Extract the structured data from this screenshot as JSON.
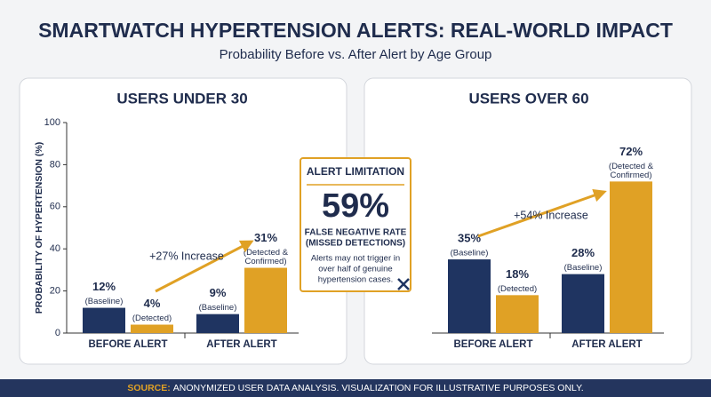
{
  "title": "SMARTWATCH HYPERTENSION ALERTS: REAL-WORLD IMPACT",
  "subtitle": "Probability Before vs. After Alert by Age Group",
  "callout": {
    "heading": "ALERT LIMITATION",
    "figure": "59%",
    "caption": [
      "FALSE NEGATIVE RATE",
      "(MISSED DETECTIONS)"
    ],
    "body": [
      "Alerts may not trigger in",
      "over half of genuine",
      "hypertension cases."
    ]
  },
  "source": {
    "label": "SOURCE:",
    "text": "ANONYMIZED USER DATA ANALYSIS. VISUALIZATION FOR ILLUSTRATIVE PURPOSES ONLY."
  },
  "chart_data": [
    {
      "type": "bar",
      "title": "USERS UNDER 30",
      "ylabel": "PROBABILITY OF HYPERTENSION (%)",
      "categories": [
        "BEFORE ALERT",
        "AFTER ALERT"
      ],
      "series": [
        {
          "color": "#1f3461",
          "values": [
            12,
            9
          ],
          "value_labels": [
            "12%",
            "9%"
          ],
          "sublabels": [
            [
              "(Baseline)"
            ],
            [
              "(Baseline)"
            ]
          ]
        },
        {
          "color": "#e0a125",
          "values": [
            4,
            31
          ],
          "value_labels": [
            "4%",
            "31%"
          ],
          "sublabels": [
            [
              "(Detected)"
            ],
            [
              "(Detected &",
              "Confirmed)"
            ]
          ]
        }
      ],
      "annotation": "+27% Increase",
      "ylim": [
        0,
        100
      ],
      "yticks": [
        0,
        20,
        40,
        60,
        80,
        100
      ]
    },
    {
      "type": "bar",
      "title": "USERS OVER 60",
      "categories": [
        "BEFORE ALERT",
        "AFTER ALERT"
      ],
      "series": [
        {
          "color": "#1f3461",
          "values": [
            35,
            28
          ],
          "value_labels": [
            "35%",
            "28%"
          ],
          "sublabels": [
            [
              "(Baseline)"
            ],
            [
              "(Baseline)"
            ]
          ]
        },
        {
          "color": "#e0a125",
          "values": [
            18,
            72
          ],
          "value_labels": [
            "18%",
            "72%"
          ],
          "sublabels": [
            [
              "(Detected)"
            ],
            [
              "(Detected &",
              "Confirmed)"
            ]
          ]
        }
      ],
      "annotation": "+54% Increase",
      "ylim": [
        0,
        100
      ]
    }
  ]
}
